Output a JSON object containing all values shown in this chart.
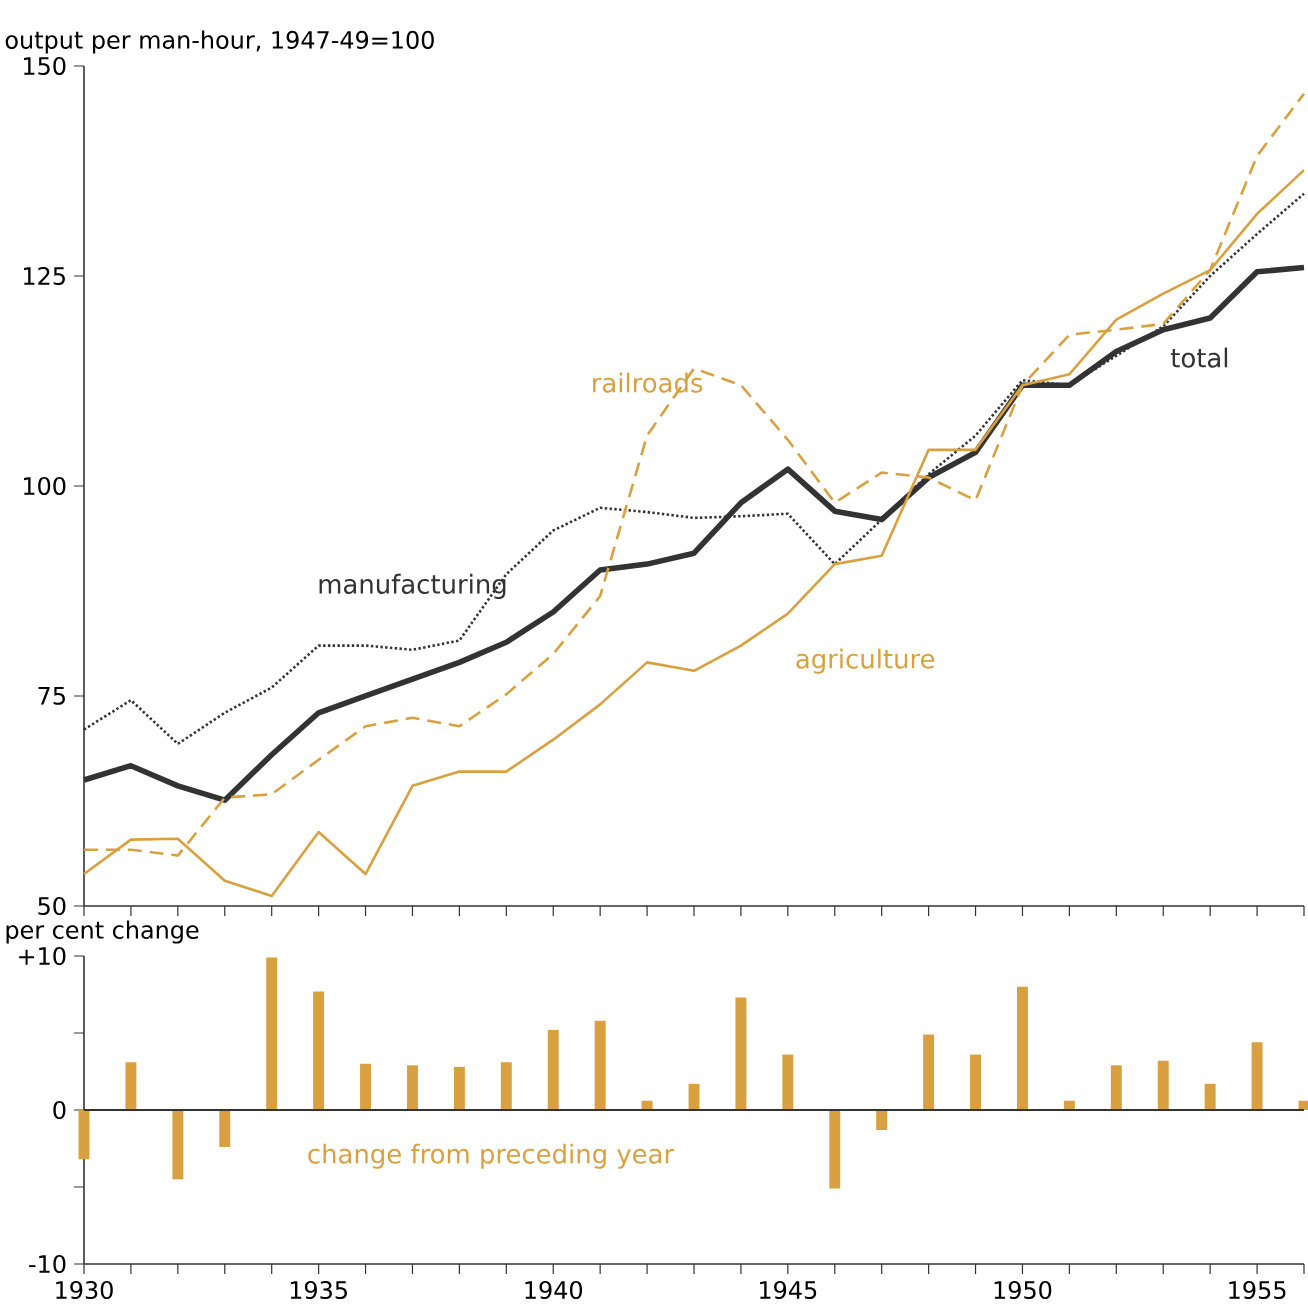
{
  "chart_data": [
    {
      "type": "line",
      "ylabel": "output per man-hour, 1947-49=100",
      "x": [
        1930,
        1931,
        1932,
        1933,
        1934,
        1935,
        1936,
        1937,
        1938,
        1939,
        1940,
        1941,
        1942,
        1943,
        1944,
        1945,
        1946,
        1947,
        1948,
        1949,
        1950,
        1951,
        1952,
        1953,
        1954,
        1955,
        1956
      ],
      "xlim": [
        1930,
        1956
      ],
      "ylim": [
        50,
        150
      ],
      "yticks": [
        50,
        75,
        100,
        125,
        150
      ],
      "xticks": [
        {
          "value": 1930,
          "label": null
        },
        {
          "value": 1931,
          "label": null
        },
        {
          "value": 1932,
          "label": null
        },
        {
          "value": 1933,
          "label": null
        },
        {
          "value": 1934,
          "label": null
        },
        {
          "value": 1935,
          "label": null
        },
        {
          "value": 1936,
          "label": null
        },
        {
          "value": 1937,
          "label": null
        },
        {
          "value": 1938,
          "label": null
        },
        {
          "value": 1939,
          "label": null
        },
        {
          "value": 1940,
          "label": null
        },
        {
          "value": 1941,
          "label": null
        },
        {
          "value": 1942,
          "label": null
        },
        {
          "value": 1943,
          "label": null
        },
        {
          "value": 1944,
          "label": null
        },
        {
          "value": 1945,
          "label": null
        },
        {
          "value": 1946,
          "label": null
        },
        {
          "value": 1947,
          "label": null
        },
        {
          "value": 1948,
          "label": null
        },
        {
          "value": 1949,
          "label": null
        },
        {
          "value": 1950,
          "label": null
        },
        {
          "value": 1951,
          "label": null
        },
        {
          "value": 1952,
          "label": null
        },
        {
          "value": 1953,
          "label": null
        },
        {
          "value": 1954,
          "label": null
        },
        {
          "value": 1955,
          "label": null
        },
        {
          "value": 1956,
          "label": null
        }
      ],
      "tick_labels": "y",
      "legend": false,
      "grid": false,
      "marker": "none",
      "series": [
        {
          "name": "total",
          "color": "#333333",
          "line_style": "solid",
          "values": [
            65,
            66.7,
            64.3,
            62.6,
            68,
            73,
            75,
            77,
            79,
            81.4,
            85,
            90,
            90.7,
            92,
            98,
            102,
            97,
            96,
            101,
            104,
            112,
            112,
            116,
            118.6,
            120,
            125.5,
            126
          ]
        },
        {
          "name": "manufacturing",
          "color": "#333333",
          "line_style": "dotted",
          "values": [
            71,
            74.5,
            69.3,
            73,
            76,
            81,
            81,
            80.5,
            81.6,
            89.5,
            94.7,
            97.4,
            96.9,
            96.2,
            96.4,
            96.7,
            90.7,
            96,
            101.4,
            106,
            112.6,
            112,
            115.5,
            119,
            125,
            130,
            134.8
          ]
        },
        {
          "name": "railroads",
          "color": "#d9a040",
          "line_style": "dashed",
          "values": [
            56.7,
            56.7,
            56,
            62.9,
            63.3,
            67.4,
            71.4,
            72.4,
            71.4,
            75.2,
            80,
            86.9,
            106,
            114,
            112,
            105.5,
            98,
            101.6,
            101,
            98.3,
            112,
            118,
            118.6,
            119.3,
            125.7,
            139.3,
            146.7
          ]
        },
        {
          "name": "agriculture",
          "color": "#d9a040",
          "line_style": "solid",
          "values": [
            53.8,
            57.9,
            58,
            53,
            51.2,
            58.8,
            53.8,
            64.3,
            66,
            66,
            69.8,
            74,
            79,
            78,
            81,
            84.8,
            90.7,
            91.7,
            104.3,
            104.3,
            112,
            113.3,
            119.8,
            122.9,
            125.7,
            132.4,
            137.6
          ]
        }
      ]
    },
    {
      "type": "bar",
      "ylabel": "per cent change",
      "x": [
        1930,
        1931,
        1932,
        1933,
        1934,
        1935,
        1936,
        1937,
        1938,
        1939,
        1940,
        1941,
        1942,
        1943,
        1944,
        1945,
        1946,
        1947,
        1948,
        1949,
        1950,
        1951,
        1952,
        1953,
        1954,
        1955,
        1956
      ],
      "values": [
        -3.2,
        3.1,
        -4.5,
        -2.4,
        9.9,
        7.7,
        3.0,
        2.9,
        2.8,
        3.1,
        5.2,
        5.8,
        0.6,
        1.7,
        7.3,
        3.6,
        -5.1,
        -1.3,
        4.9,
        3.6,
        8.0,
        0.6,
        2.9,
        3.2,
        1.7,
        4.4,
        0.6
      ],
      "color": "#d9a040",
      "xlim": [
        1930,
        1956
      ],
      "ylim": [
        -10,
        10
      ],
      "yticks": [
        {
          "value": -10,
          "label": "-10"
        },
        {
          "value": -5,
          "label": null
        },
        {
          "value": 0,
          "label": "0"
        },
        {
          "value": 5,
          "label": null
        },
        {
          "value": 10,
          "label": "+10"
        }
      ],
      "xticks": [
        1930,
        {
          "value": 1931,
          "label": null
        },
        {
          "value": 1932,
          "label": null
        },
        {
          "value": 1933,
          "label": null
        },
        {
          "value": 1934,
          "label": null
        },
        1935,
        {
          "value": 1936,
          "label": null
        },
        {
          "value": 1937,
          "label": null
        },
        {
          "value": 1938,
          "label": null
        },
        {
          "value": 1939,
          "label": null
        },
        1940,
        {
          "value": 1941,
          "label": null
        },
        {
          "value": 1942,
          "label": null
        },
        {
          "value": 1943,
          "label": null
        },
        {
          "value": 1944,
          "label": null
        },
        1945,
        {
          "value": 1946,
          "label": null
        },
        {
          "value": 1947,
          "label": null
        },
        {
          "value": 1948,
          "label": null
        },
        {
          "value": 1949,
          "label": null
        },
        1950,
        {
          "value": 1951,
          "label": null
        },
        {
          "value": 1952,
          "label": null
        },
        {
          "value": 1953,
          "label": null
        },
        {
          "value": 1954,
          "label": null
        },
        1955,
        {
          "value": 1956,
          "label": null
        }
      ],
      "ref_lines": [
        {
          "axis": "y",
          "value": 0,
          "color": "#333333"
        }
      ],
      "annotations": [
        "change from preceding year"
      ],
      "legend": false,
      "grid": false
    }
  ]
}
